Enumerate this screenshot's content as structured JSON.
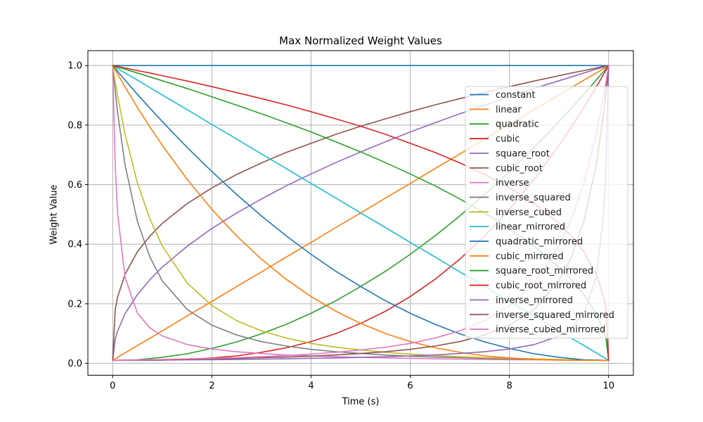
{
  "figure": {
    "title": "Max Normalized Weight Values",
    "xlabel": "Time (s)",
    "ylabel": "Weight Value"
  },
  "chart_data": {
    "type": "line",
    "title": "Max Normalized Weight Values",
    "xlabel": "Time (s)",
    "ylabel": "Weight Value",
    "grid": true,
    "grid_color": "#b0b0b0",
    "spine_color": "#000000",
    "legend_position": "inside right",
    "legend_bg": "rgba(255,255,255,0.8)",
    "legend_border": "#cccccc",
    "xlim": [
      -0.5,
      10.5
    ],
    "ylim": [
      -0.04,
      1.05
    ],
    "x_ticks": [
      0,
      2,
      4,
      6,
      8,
      10
    ],
    "x_tick_labels": [
      "0",
      "2",
      "4",
      "6",
      "8",
      "10"
    ],
    "y_ticks": [
      0.0,
      0.2,
      0.4,
      0.6,
      0.8,
      1.0
    ],
    "y_tick_labels": [
      "0.0",
      "0.2",
      "0.4",
      "0.6",
      "0.8",
      "1.0"
    ],
    "x": [
      0,
      0.05,
      0.1,
      0.25,
      0.5,
      0.75,
      1,
      1.5,
      2,
      2.5,
      3,
      3.5,
      4,
      4.5,
      5,
      5.5,
      6,
      6.5,
      7,
      7.5,
      8,
      8.5,
      9,
      9.25,
      9.5,
      9.75,
      9.9,
      9.95,
      10
    ],
    "series": [
      {
        "name": "constant",
        "color": "#1f77b4",
        "values": [
          1,
          1,
          1,
          1,
          1,
          1,
          1,
          1,
          1,
          1,
          1,
          1,
          1,
          1,
          1,
          1,
          1,
          1,
          1,
          1,
          1,
          1,
          1,
          1,
          1,
          1,
          1,
          1,
          1
        ]
      },
      {
        "name": "linear",
        "color": "#ff7f0e",
        "values": [
          0.01,
          0.015,
          0.02,
          0.035,
          0.06,
          0.084,
          0.109,
          0.159,
          0.208,
          0.258,
          0.307,
          0.357,
          0.406,
          0.456,
          0.505,
          0.555,
          0.604,
          0.654,
          0.703,
          0.753,
          0.802,
          0.852,
          0.901,
          0.926,
          0.951,
          0.975,
          0.99,
          0.995,
          1
        ]
      },
      {
        "name": "quadratic",
        "color": "#2ca02c",
        "values": [
          0.01,
          0.01,
          0.01,
          0.011,
          0.012,
          0.016,
          0.02,
          0.032,
          0.05,
          0.072,
          0.099,
          0.131,
          0.168,
          0.21,
          0.258,
          0.309,
          0.366,
          0.428,
          0.495,
          0.567,
          0.644,
          0.725,
          0.812,
          0.857,
          0.903,
          0.951,
          0.98,
          0.99,
          1
        ]
      },
      {
        "name": "cubic",
        "color": "#d62728",
        "values": [
          0.01,
          0.01,
          0.01,
          0.01,
          0.01,
          0.01,
          0.011,
          0.013,
          0.018,
          0.025,
          0.037,
          0.052,
          0.073,
          0.1,
          0.134,
          0.175,
          0.224,
          0.282,
          0.35,
          0.428,
          0.517,
          0.618,
          0.732,
          0.794,
          0.859,
          0.928,
          0.971,
          0.985,
          1
        ]
      },
      {
        "name": "square_root",
        "color": "#9467bd",
        "values": [
          0.01,
          0.08,
          0.109,
          0.167,
          0.231,
          0.281,
          0.323,
          0.393,
          0.453,
          0.505,
          0.552,
          0.596,
          0.636,
          0.674,
          0.71,
          0.744,
          0.777,
          0.808,
          0.838,
          0.867,
          0.895,
          0.923,
          0.949,
          0.962,
          0.975,
          0.988,
          0.995,
          0.998,
          1
        ]
      },
      {
        "name": "cubic_root",
        "color": "#8c564b",
        "values": [
          0.01,
          0.179,
          0.223,
          0.299,
          0.375,
          0.427,
          0.47,
          0.536,
          0.589,
          0.634,
          0.673,
          0.708,
          0.739,
          0.769,
          0.796,
          0.821,
          0.845,
          0.868,
          0.889,
          0.909,
          0.929,
          0.948,
          0.966,
          0.975,
          0.983,
          0.992,
          0.997,
          0.998,
          1
        ]
      },
      {
        "name": "inverse",
        "color": "#e377c2",
        "values": [
          1,
          0.669,
          0.503,
          0.288,
          0.168,
          0.119,
          0.092,
          0.063,
          0.048,
          0.039,
          0.033,
          0.028,
          0.025,
          0.022,
          0.02,
          0.018,
          0.017,
          0.015,
          0.014,
          0.013,
          0.012,
          0.0118,
          0.0111,
          0.0108,
          0.0105,
          0.0103,
          0.0101,
          0.0101,
          0.01
        ]
      },
      {
        "name": "inverse_squared",
        "color": "#7f7f7f",
        "values": [
          1,
          0.916,
          0.842,
          0.666,
          0.476,
          0.357,
          0.277,
          0.181,
          0.128,
          0.095,
          0.073,
          0.058,
          0.047,
          0.039,
          0.033,
          0.028,
          0.024,
          0.021,
          0.019,
          0.017,
          0.015,
          0.013,
          0.012,
          0.0115,
          0.011,
          0.0105,
          0.0102,
          0.0101,
          0.01
        ]
      },
      {
        "name": "inverse_cubed",
        "color": "#bcbd22",
        "values": [
          1,
          0.947,
          0.898,
          0.77,
          0.605,
          0.485,
          0.394,
          0.27,
          0.194,
          0.143,
          0.109,
          0.085,
          0.067,
          0.054,
          0.045,
          0.037,
          0.031,
          0.026,
          0.022,
          0.019,
          0.017,
          0.015,
          0.013,
          0.012,
          0.0113,
          0.0106,
          0.0102,
          0.0101,
          0.01
        ]
      },
      {
        "name": "linear_mirrored",
        "color": "#17becf",
        "values": [
          1,
          0.995,
          0.99,
          0.975,
          0.951,
          0.926,
          0.901,
          0.852,
          0.802,
          0.753,
          0.703,
          0.654,
          0.604,
          0.555,
          0.505,
          0.456,
          0.406,
          0.357,
          0.307,
          0.258,
          0.208,
          0.159,
          0.109,
          0.084,
          0.06,
          0.035,
          0.02,
          0.015,
          0.01
        ]
      },
      {
        "name": "quadratic_mirrored",
        "color": "#1f77b4",
        "values": [
          1,
          0.99,
          0.98,
          0.951,
          0.903,
          0.857,
          0.812,
          0.725,
          0.644,
          0.567,
          0.495,
          0.428,
          0.366,
          0.309,
          0.258,
          0.21,
          0.168,
          0.131,
          0.099,
          0.072,
          0.05,
          0.032,
          0.02,
          0.016,
          0.012,
          0.011,
          0.01,
          0.01,
          0.01
        ]
      },
      {
        "name": "cubic_mirrored",
        "color": "#ff7f0e",
        "values": [
          1,
          0.985,
          0.971,
          0.928,
          0.859,
          0.794,
          0.732,
          0.618,
          0.517,
          0.428,
          0.35,
          0.282,
          0.224,
          0.175,
          0.134,
          0.1,
          0.073,
          0.052,
          0.037,
          0.025,
          0.018,
          0.013,
          0.011,
          0.01,
          0.01,
          0.01,
          0.01,
          0.01,
          0.01
        ]
      },
      {
        "name": "square_root_mirrored",
        "color": "#2ca02c",
        "values": [
          1,
          0.998,
          0.995,
          0.988,
          0.975,
          0.962,
          0.949,
          0.923,
          0.895,
          0.867,
          0.838,
          0.808,
          0.777,
          0.744,
          0.71,
          0.674,
          0.636,
          0.596,
          0.552,
          0.505,
          0.453,
          0.393,
          0.323,
          0.281,
          0.231,
          0.167,
          0.109,
          0.08,
          0.01
        ]
      },
      {
        "name": "cubic_root_mirrored",
        "color": "#d62728",
        "values": [
          1,
          0.998,
          0.997,
          0.992,
          0.983,
          0.975,
          0.966,
          0.948,
          0.929,
          0.909,
          0.889,
          0.868,
          0.845,
          0.821,
          0.796,
          0.769,
          0.739,
          0.708,
          0.673,
          0.634,
          0.589,
          0.536,
          0.47,
          0.427,
          0.375,
          0.299,
          0.223,
          0.179,
          0.01
        ]
      },
      {
        "name": "inverse_mirrored",
        "color": "#9467bd",
        "values": [
          0.01,
          0.0101,
          0.0101,
          0.0103,
          0.0105,
          0.0108,
          0.0111,
          0.0118,
          0.012,
          0.013,
          0.014,
          0.015,
          0.017,
          0.018,
          0.02,
          0.022,
          0.025,
          0.028,
          0.033,
          0.039,
          0.048,
          0.063,
          0.092,
          0.119,
          0.168,
          0.288,
          0.503,
          0.669,
          1
        ]
      },
      {
        "name": "inverse_squared_mirrored",
        "color": "#8c564b",
        "values": [
          0.01,
          0.0101,
          0.0102,
          0.0105,
          0.011,
          0.0115,
          0.012,
          0.013,
          0.015,
          0.017,
          0.019,
          0.021,
          0.024,
          0.028,
          0.033,
          0.039,
          0.047,
          0.058,
          0.073,
          0.095,
          0.128,
          0.181,
          0.277,
          0.357,
          0.476,
          0.666,
          0.842,
          0.916,
          1
        ]
      },
      {
        "name": "inverse_cubed_mirrored",
        "color": "#e377c2",
        "values": [
          0.01,
          0.0101,
          0.0102,
          0.0106,
          0.0113,
          0.012,
          0.013,
          0.015,
          0.017,
          0.019,
          0.022,
          0.026,
          0.031,
          0.037,
          0.045,
          0.054,
          0.067,
          0.085,
          0.109,
          0.143,
          0.194,
          0.27,
          0.394,
          0.485,
          0.605,
          0.77,
          0.898,
          0.947,
          1
        ]
      }
    ]
  }
}
